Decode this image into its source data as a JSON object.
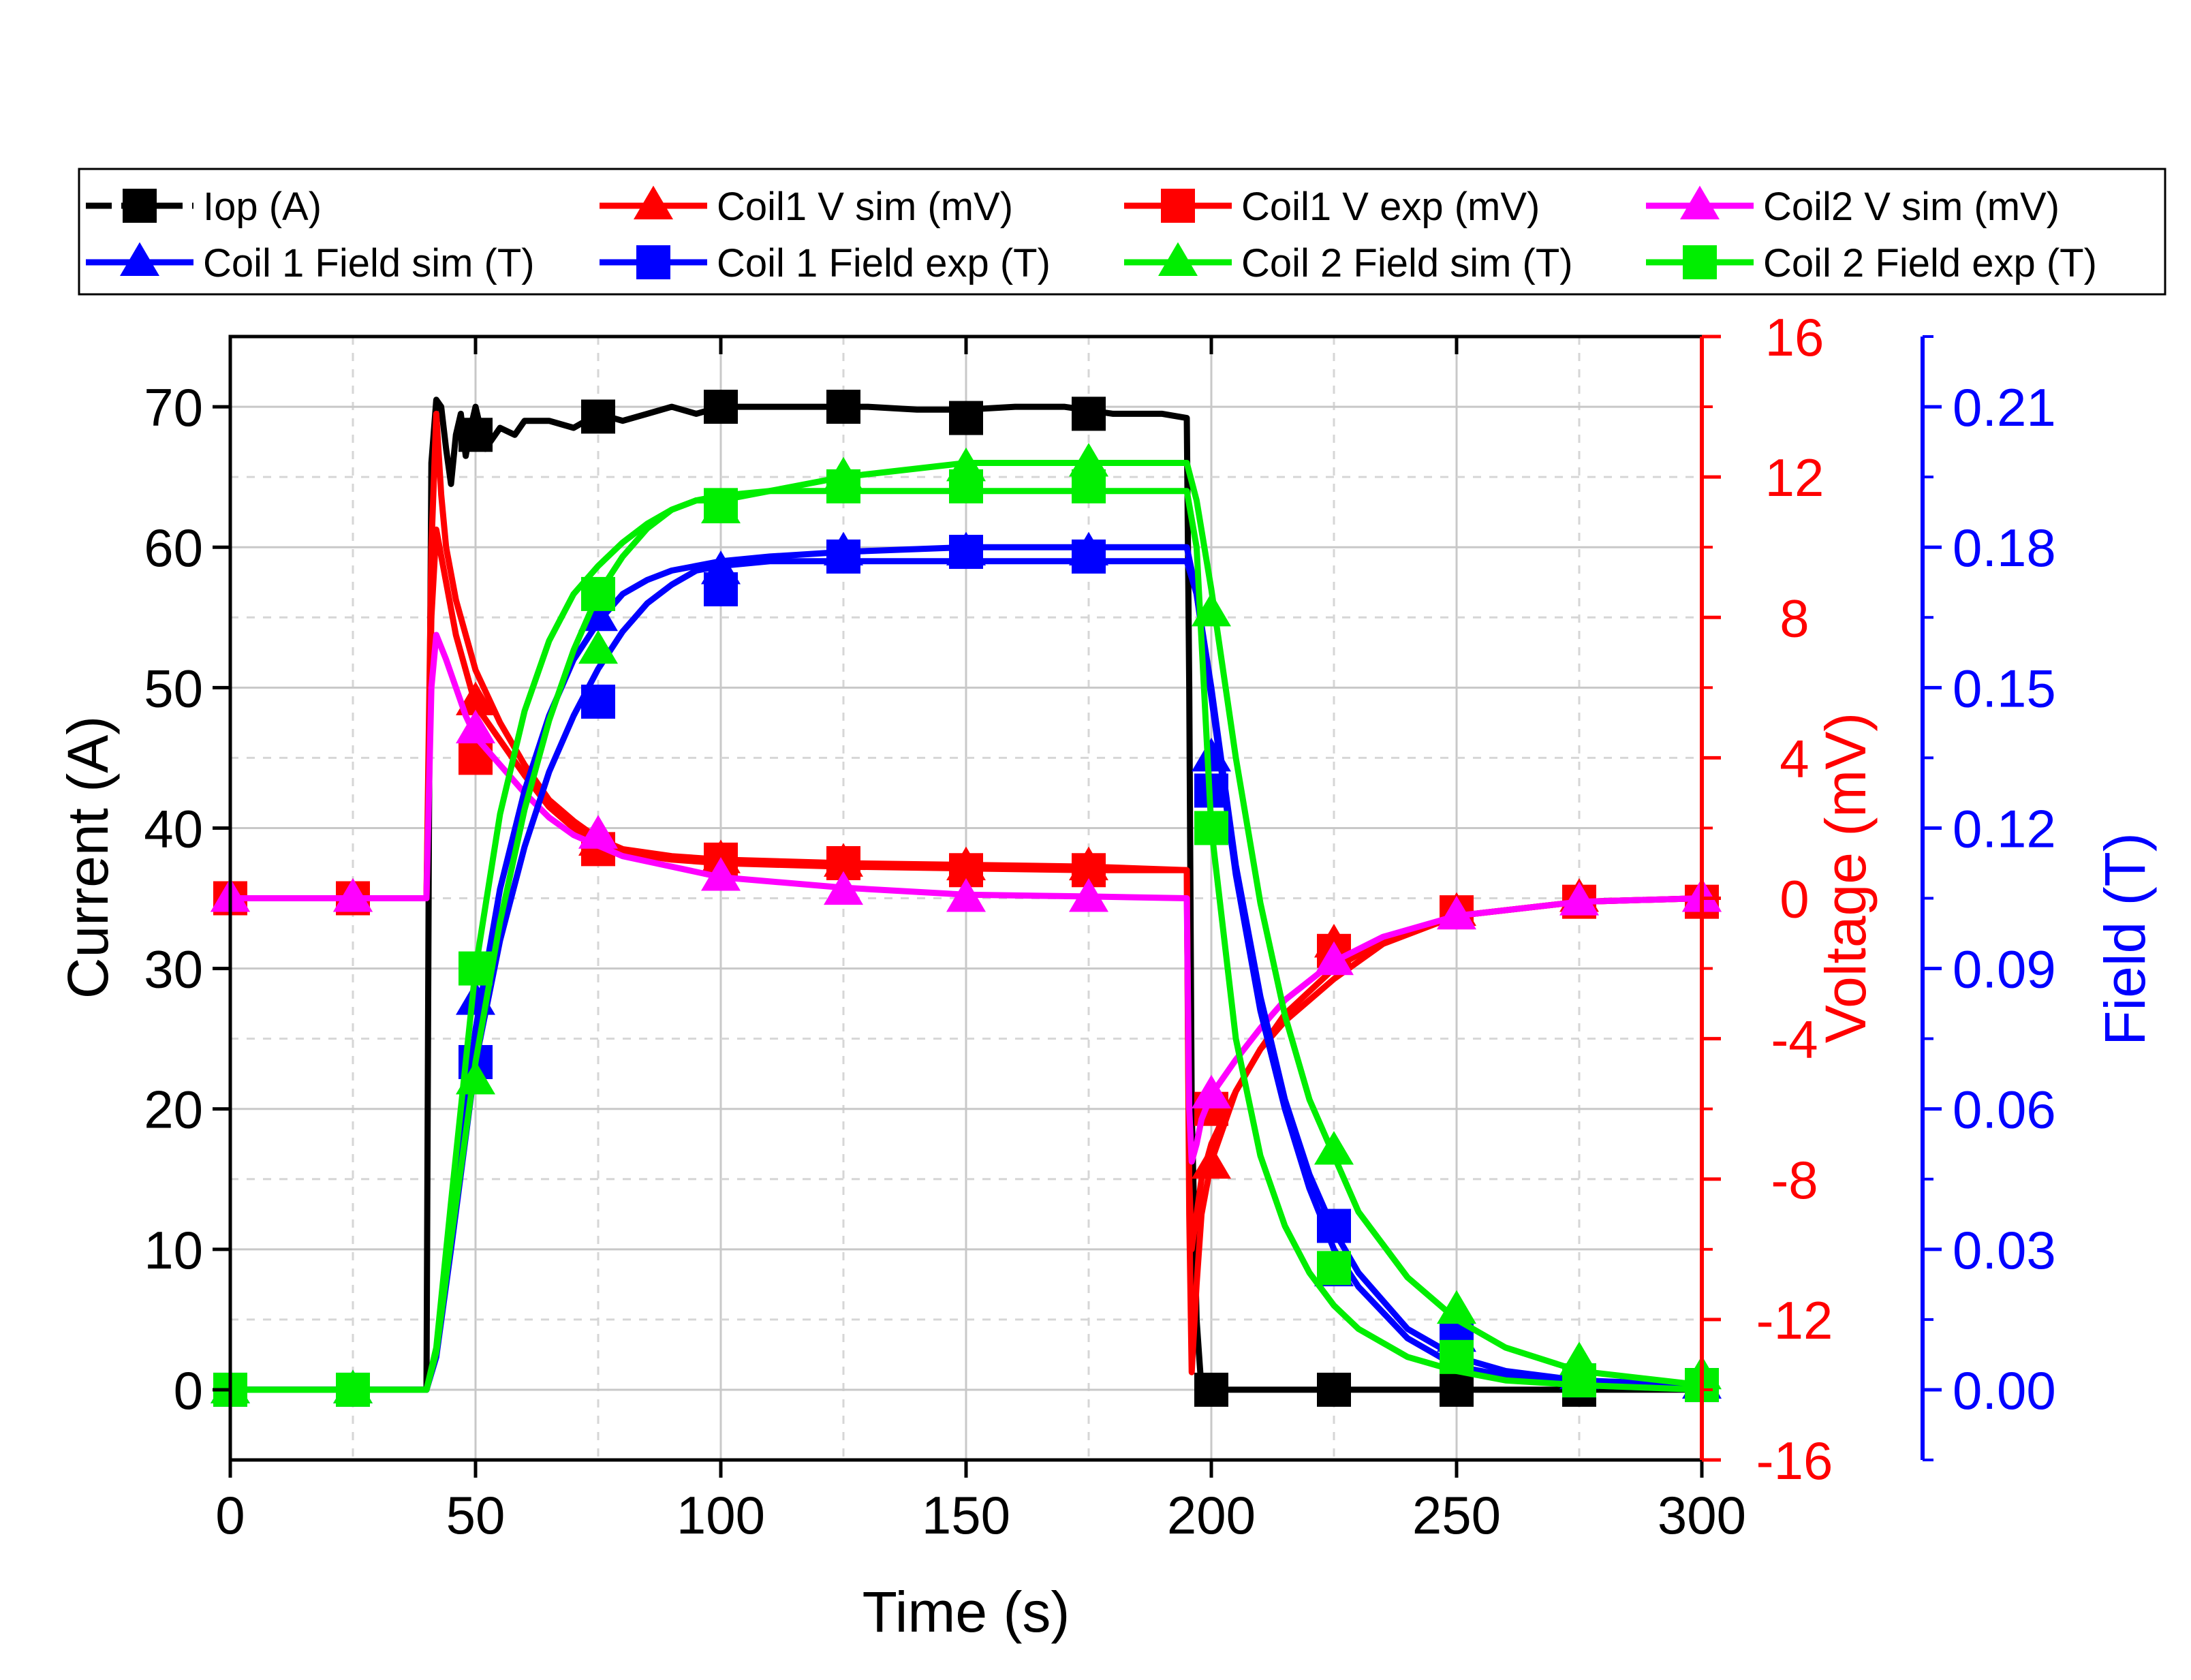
{
  "chart_data": {
    "type": "line",
    "title": "",
    "x_axis": {
      "label": "Time (s)",
      "range": [
        0,
        300
      ],
      "ticks": [
        0,
        50,
        100,
        150,
        200,
        250,
        300
      ],
      "tick_labels": [
        "0",
        "50",
        "100",
        "150",
        "200",
        "250",
        "300"
      ]
    },
    "y_axes": [
      {
        "id": "current",
        "label": "Current (A)",
        "side": "left",
        "color": "#000000",
        "range": [
          -5,
          75
        ],
        "ticks": [
          0,
          10,
          20,
          30,
          40,
          50,
          60,
          70
        ],
        "tick_labels": [
          "0",
          "10",
          "20",
          "30",
          "40",
          "50",
          "60",
          "70"
        ]
      },
      {
        "id": "voltage",
        "label": "Voltage (mV)",
        "side": "right",
        "color": "#ff0000",
        "range": [
          -16,
          16
        ],
        "ticks": [
          -16,
          -12,
          -8,
          -4,
          0,
          4,
          8,
          12,
          16
        ],
        "tick_labels": [
          "-16",
          "-12",
          "-8",
          "-4",
          "0",
          "4",
          "8",
          "12",
          "16"
        ]
      },
      {
        "id": "field",
        "label": "Field (T)",
        "side": "right-outer",
        "color": "#0000ff",
        "range": [
          -0.015,
          0.225
        ],
        "ticks": [
          0.0,
          0.03,
          0.06,
          0.09,
          0.12,
          0.15,
          0.18,
          0.21
        ],
        "tick_labels": [
          "0.00",
          "0.03",
          "0.06",
          "0.09",
          "0.12",
          "0.15",
          "0.18",
          "0.21"
        ]
      }
    ],
    "grid": true,
    "legend_position": "top",
    "series": [
      {
        "name": "Iop (A)",
        "axis": "current",
        "color": "#000000",
        "marker": "square",
        "dashed_legend": true,
        "x": [
          0,
          40,
          40.5,
          41,
          42,
          43,
          44,
          45,
          46,
          47,
          48,
          49,
          50,
          52,
          55,
          58,
          60,
          65,
          70,
          75,
          80,
          85,
          90,
          95,
          100,
          110,
          120,
          130,
          140,
          150,
          160,
          170,
          180,
          190,
          195,
          195.5,
          196,
          197,
          198,
          200,
          225,
          250,
          275,
          300
        ],
        "y": [
          0,
          0,
          40,
          66,
          70.5,
          70,
          67,
          64.5,
          68,
          69.5,
          66.5,
          68.5,
          70,
          67,
          68.5,
          68,
          69,
          69,
          68.5,
          69.5,
          69,
          69.5,
          70,
          69.5,
          70,
          70,
          70,
          70,
          69.8,
          69.8,
          70,
          70,
          69.5,
          69.5,
          69.2,
          50,
          20,
          5,
          0,
          0,
          0,
          0,
          0,
          0
        ],
        "marker_x": [
          50,
          75,
          100,
          125,
          150,
          175,
          200,
          225,
          250,
          275
        ],
        "marker_y": [
          68,
          69.3,
          70,
          70,
          69.2,
          69.5,
          0,
          0,
          0,
          0
        ]
      },
      {
        "name": "Coil1 V sim (mV)",
        "axis": "voltage",
        "color": "#ff0000",
        "marker": "triangle",
        "x": [
          0,
          40,
          41,
          42,
          44,
          46,
          48,
          50,
          55,
          60,
          65,
          70,
          75,
          80,
          90,
          100,
          125,
          150,
          175,
          195,
          195.5,
          196,
          197,
          198,
          200,
          205,
          210,
          215,
          225,
          235,
          250,
          275,
          300
        ],
        "y": [
          0,
          0,
          8,
          10.5,
          9,
          7.5,
          6.5,
          5.5,
          4.5,
          3.5,
          2.6,
          2.0,
          1.6,
          1.3,
          1.1,
          1.0,
          0.9,
          0.85,
          0.8,
          0.8,
          -8,
          -10,
          -9,
          -8,
          -7,
          -5.5,
          -4.3,
          -3.3,
          -2.0,
          -1.2,
          -0.5,
          -0.1,
          0
        ],
        "marker_x": [
          0,
          25,
          50,
          75,
          100,
          125,
          150,
          175,
          200,
          225,
          250,
          275,
          300
        ],
        "marker_y": [
          0,
          0,
          5.6,
          1.6,
          1.1,
          1.0,
          0.9,
          0.9,
          -7.6,
          -1.3,
          -0.4,
          0,
          0
        ]
      },
      {
        "name": "Coil1 V exp (mV)",
        "axis": "voltage",
        "color": "#ff0000",
        "marker": "square",
        "x": [
          0,
          40,
          41,
          42,
          43,
          44,
          46,
          48,
          50,
          55,
          60,
          65,
          70,
          75,
          80,
          90,
          100,
          125,
          150,
          175,
          195,
          195.5,
          196,
          197,
          198,
          200,
          205,
          210,
          215,
          225,
          235,
          250,
          275,
          300
        ],
        "y": [
          0,
          0,
          10,
          13.8,
          11.5,
          10,
          8.5,
          7.5,
          6.5,
          5,
          3.8,
          2.8,
          2.2,
          1.7,
          1.4,
          1.2,
          1.1,
          1.0,
          0.95,
          0.9,
          0.8,
          -9,
          -13.5,
          -11,
          -9,
          -7.5,
          -5.5,
          -4.3,
          -3.5,
          -2.3,
          -1.3,
          -0.5,
          -0.1,
          0
        ],
        "marker_x": [
          0,
          25,
          50,
          75,
          100,
          125,
          150,
          175,
          200,
          225,
          250,
          275,
          300
        ],
        "marker_y": [
          0,
          0,
          4.0,
          1.4,
          1.1,
          1.0,
          0.8,
          0.8,
          -6.0,
          -1.5,
          -0.4,
          -0.1,
          -0.1
        ]
      },
      {
        "name": "Coil2 V sim (mV)",
        "axis": "voltage",
        "color": "#ff00ff",
        "marker": "triangle",
        "x": [
          0,
          40,
          41,
          42,
          44,
          46,
          48,
          50,
          55,
          60,
          65,
          70,
          75,
          80,
          90,
          100,
          125,
          150,
          175,
          195,
          195.5,
          196,
          197,
          198,
          200,
          205,
          210,
          215,
          225,
          235,
          250,
          275,
          300
        ],
        "y": [
          0,
          0,
          6,
          7.5,
          6.8,
          6,
          5.2,
          4.6,
          3.8,
          3.0,
          2.3,
          1.8,
          1.5,
          1.2,
          0.9,
          0.6,
          0.3,
          0.1,
          0.05,
          0.0,
          -6,
          -7.5,
          -7,
          -6.3,
          -5.6,
          -4.6,
          -3.7,
          -2.9,
          -1.8,
          -1.1,
          -0.5,
          -0.1,
          0
        ],
        "marker_x": [
          0,
          25,
          50,
          75,
          100,
          125,
          150,
          175,
          200,
          225,
          250,
          275,
          300
        ],
        "marker_y": [
          0,
          0,
          4.8,
          1.8,
          0.6,
          0.2,
          0,
          0,
          -5.6,
          -1.8,
          -0.5,
          -0.1,
          0
        ]
      },
      {
        "name": "Coil 1 Field sim (T)",
        "axis": "field",
        "color": "#0000ff",
        "marker": "triangle",
        "x": [
          0,
          40,
          42,
          45,
          50,
          55,
          60,
          65,
          70,
          75,
          80,
          85,
          90,
          95,
          100,
          110,
          125,
          150,
          175,
          195,
          197,
          200,
          205,
          210,
          215,
          220,
          225,
          230,
          240,
          250,
          260,
          275,
          300
        ],
        "y": [
          0,
          0,
          0.008,
          0.035,
          0.077,
          0.107,
          0.128,
          0.144,
          0.156,
          0.164,
          0.17,
          0.173,
          0.175,
          0.176,
          0.177,
          0.178,
          0.179,
          0.18,
          0.18,
          0.18,
          0.17,
          0.148,
          0.11,
          0.081,
          0.06,
          0.043,
          0.03,
          0.022,
          0.011,
          0.005,
          0.003,
          0.001,
          0
        ],
        "marker_x": [
          0,
          25,
          50,
          75,
          100,
          125,
          150,
          175,
          200,
          225,
          250,
          275,
          300
        ],
        "marker_y": [
          0,
          0,
          0.083,
          0.165,
          0.175,
          0.179,
          0.179,
          0.179,
          0.135,
          0.025,
          0.011,
          0.003,
          0.001
        ]
      },
      {
        "name": "Coil 1 Field exp (T)",
        "axis": "field",
        "color": "#0000ff",
        "marker": "square",
        "x": [
          0,
          40,
          42,
          45,
          50,
          55,
          60,
          65,
          70,
          75,
          80,
          85,
          90,
          95,
          100,
          110,
          125,
          150,
          175,
          195,
          197,
          200,
          205,
          210,
          215,
          220,
          225,
          230,
          240,
          250,
          260,
          275,
          300
        ],
        "y": [
          0,
          0,
          0.007,
          0.03,
          0.07,
          0.096,
          0.116,
          0.132,
          0.144,
          0.154,
          0.162,
          0.168,
          0.172,
          0.175,
          0.176,
          0.177,
          0.177,
          0.177,
          0.177,
          0.177,
          0.17,
          0.15,
          0.112,
          0.084,
          0.062,
          0.046,
          0.034,
          0.025,
          0.013,
          0.007,
          0.004,
          0.002,
          0.001
        ],
        "marker_x": [
          0,
          25,
          50,
          75,
          100,
          125,
          150,
          175,
          200,
          225,
          250,
          275,
          300
        ],
        "marker_y": [
          0,
          0,
          0.07,
          0.147,
          0.171,
          0.178,
          0.179,
          0.178,
          0.128,
          0.035,
          0.011,
          0.002,
          0.001
        ]
      },
      {
        "name": "Coil 2 Field sim (T)",
        "axis": "field",
        "color": "#00ee00",
        "marker": "triangle",
        "x": [
          0,
          40,
          42,
          45,
          50,
          55,
          60,
          65,
          70,
          75,
          80,
          85,
          90,
          95,
          100,
          110,
          125,
          150,
          175,
          195,
          197,
          200,
          205,
          210,
          215,
          220,
          225,
          230,
          240,
          250,
          260,
          275,
          300
        ],
        "y": [
          0,
          0,
          0.008,
          0.032,
          0.07,
          0.1,
          0.124,
          0.143,
          0.158,
          0.17,
          0.178,
          0.184,
          0.188,
          0.19,
          0.19,
          0.192,
          0.195,
          0.198,
          0.198,
          0.198,
          0.19,
          0.171,
          0.135,
          0.104,
          0.08,
          0.062,
          0.05,
          0.038,
          0.024,
          0.015,
          0.009,
          0.004,
          0.001
        ],
        "marker_x": [
          0,
          25,
          50,
          75,
          100,
          125,
          150,
          175,
          200,
          225,
          250,
          275,
          300
        ],
        "marker_y": [
          0,
          0,
          0.066,
          0.158,
          0.188,
          0.195,
          0.197,
          0.198,
          0.166,
          0.051,
          0.017,
          0.006,
          0.003
        ]
      },
      {
        "name": "Coil 2 Field exp (T)",
        "axis": "field",
        "color": "#00ee00",
        "marker": "square",
        "x": [
          0,
          40,
          42,
          45,
          50,
          55,
          60,
          65,
          70,
          75,
          80,
          85,
          90,
          95,
          100,
          110,
          125,
          150,
          175,
          195,
          197,
          200,
          205,
          210,
          215,
          220,
          225,
          230,
          240,
          250,
          260,
          275,
          300
        ],
        "y": [
          0,
          0,
          0.009,
          0.04,
          0.09,
          0.123,
          0.145,
          0.16,
          0.17,
          0.176,
          0.181,
          0.185,
          0.188,
          0.19,
          0.191,
          0.192,
          0.192,
          0.192,
          0.192,
          0.192,
          0.18,
          0.12,
          0.075,
          0.05,
          0.035,
          0.025,
          0.018,
          0.013,
          0.007,
          0.004,
          0.002,
          0.001,
          0
        ],
        "marker_x": [
          0,
          25,
          50,
          75,
          100,
          125,
          150,
          175,
          200,
          225,
          250,
          275,
          300
        ],
        "marker_y": [
          0,
          0,
          0.09,
          0.17,
          0.189,
          0.193,
          0.193,
          0.193,
          0.12,
          0.026,
          0.007,
          0.002,
          0.001
        ]
      }
    ]
  }
}
